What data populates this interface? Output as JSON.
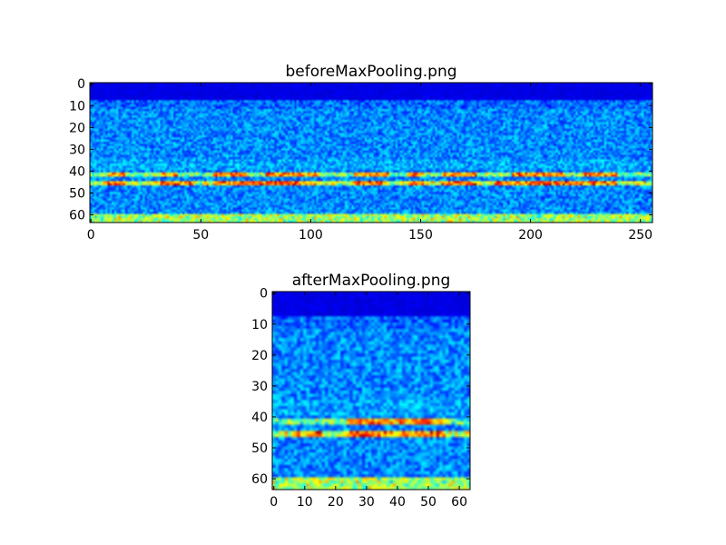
{
  "chart_data": [
    {
      "type": "heatmap",
      "title": "beforeMaxPooling.png",
      "colormap": "jet",
      "image_size": [
        256,
        64
      ],
      "xlim": [
        -0.5,
        255.5
      ],
      "ylim": [
        63.5,
        -0.5
      ],
      "xticks": [
        0,
        50,
        100,
        150,
        200,
        250
      ],
      "yticks": [
        0,
        10,
        20,
        30,
        40,
        50,
        60
      ],
      "grid": false,
      "features": {
        "dark_top_rows": [
          0,
          7
        ],
        "bright_bands_rows": [
          41,
          45
        ],
        "bright_bottom_rows": [
          60,
          63
        ]
      }
    },
    {
      "type": "heatmap",
      "title": "afterMaxPooling.png",
      "colormap": "jet",
      "image_size": [
        64,
        64
      ],
      "xlim": [
        -0.5,
        63.5
      ],
      "ylim": [
        63.5,
        -0.5
      ],
      "xticks": [
        0,
        10,
        20,
        30,
        40,
        50,
        60
      ],
      "yticks": [
        0,
        10,
        20,
        30,
        40,
        50,
        60
      ],
      "grid": false,
      "features": {
        "dark_top_rows": [
          0,
          7
        ],
        "bright_bands_rows": [
          41,
          45
        ],
        "bright_bottom_rows": [
          60,
          63
        ]
      }
    }
  ]
}
